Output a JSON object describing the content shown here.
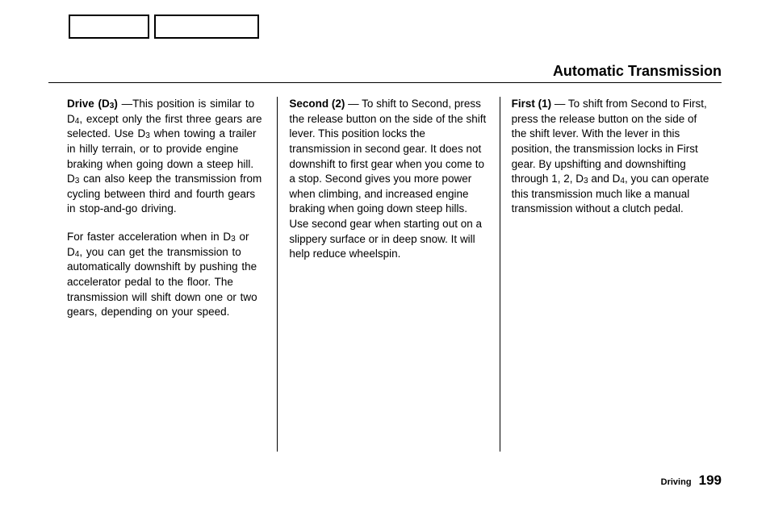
{
  "header": {
    "title": "Automatic Transmission"
  },
  "columns": {
    "col1": {
      "p1_lead_bold": "Drive (D",
      "p1_lead_sub": "3",
      "p1_lead_close": ")",
      "p1_a": " —This position is similar to D",
      "p1_sub1": "4",
      "p1_b": ", except only the first three gears are selected. Use D",
      "p1_sub2": "3",
      "p1_c": " when towing a trailer in hilly terrain, or to provide engine braking when going down a steep hill. D",
      "p1_sub3": "3",
      "p1_d": " can also keep the transmission from cycling between third and fourth gears in stop-and-go driving.",
      "p2_a": "For faster acceleration when in D",
      "p2_sub1": "3",
      "p2_b": " or D",
      "p2_sub2": "4",
      "p2_c": ", you can get the transmission to automatically downshift by pushing the accelerator pedal to the floor. The transmission will shift down one or two gears, depending on your speed."
    },
    "col2": {
      "p1_lead_bold": "Second (2)",
      "p1_body": " — To shift to Second, press the release button on the side of the shift lever. This position locks the transmission in second gear. It does not downshift to first gear when you come to a stop. Second gives you more power when climbing, and increased engine braking when going down steep hills. Use second gear when starting out on a slippery surface or in deep snow. It will help reduce wheelspin."
    },
    "col3": {
      "p1_lead_bold": "First (1)",
      "p1_a": " — To shift from Second to First, press the release button on the side of the shift lever. With the lever in this position, the transmission locks in First gear. By upshifting and downshifting through 1, 2, D",
      "p1_sub1": "3",
      "p1_b": " and D",
      "p1_sub2": "4",
      "p1_c": ", you can operate this transmission much like a manual transmission without a clutch pedal."
    }
  },
  "footer": {
    "section": "Driving",
    "page": "199"
  }
}
